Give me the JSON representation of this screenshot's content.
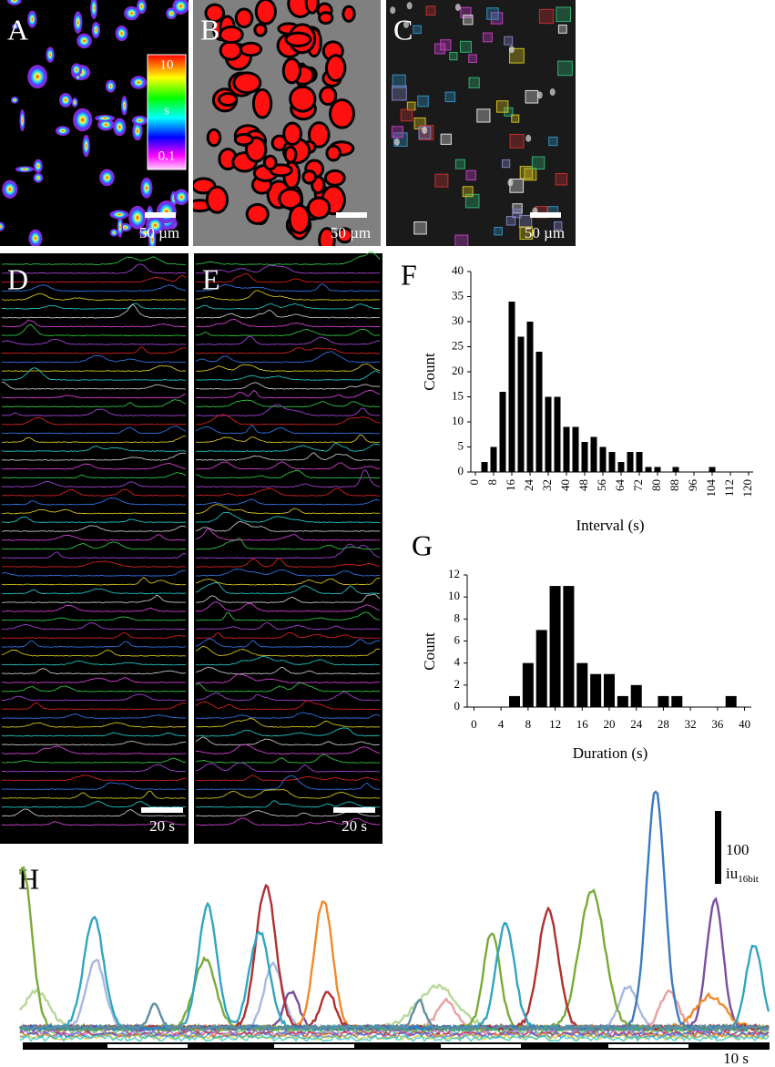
{
  "panels": {
    "A": {
      "label": "A",
      "scale": "50 µm",
      "colorbar": {
        "max": "10",
        "unit": "s",
        "min": "0.1"
      }
    },
    "B": {
      "label": "B",
      "scale": "50 µm"
    },
    "C": {
      "label": "C",
      "scale": "50 µm"
    },
    "D": {
      "label": "D",
      "scale": "20 s"
    },
    "E": {
      "label": "E",
      "scale": "20 s"
    },
    "H": {
      "label": "H",
      "scale_value": "100",
      "scale_unit": "iu",
      "scale_unit_sub": "16bit",
      "time_scale": "10 s"
    }
  },
  "chart_data": [
    {
      "type": "bar",
      "panel_label": "F",
      "x_label": "Interval (s)",
      "y_label": "Count",
      "color": "#000000",
      "x": [
        0,
        4,
        8,
        12,
        16,
        20,
        24,
        28,
        32,
        36,
        40,
        44,
        48,
        52,
        56,
        60,
        64,
        68,
        72,
        76,
        80,
        84,
        88,
        92,
        96,
        100,
        104,
        108,
        112,
        116,
        120
      ],
      "values": [
        0,
        2,
        5,
        16,
        34,
        27,
        30,
        24,
        15,
        15,
        9,
        9,
        6,
        7,
        5,
        4,
        2,
        4,
        4,
        1,
        1,
        0,
        1,
        0,
        0,
        0,
        1,
        0,
        0,
        0,
        0
      ],
      "xlim": [
        -2,
        122
      ],
      "ylim": [
        0,
        40
      ],
      "xticks": [
        0,
        8,
        16,
        24,
        32,
        40,
        48,
        56,
        64,
        72,
        80,
        88,
        96,
        104,
        112,
        120
      ],
      "yticks": [
        0,
        5,
        10,
        15,
        20,
        25,
        30,
        35,
        40
      ]
    },
    {
      "type": "bar",
      "panel_label": "G",
      "x_label": "Duration (s)",
      "y_label": "Count",
      "color": "#000000",
      "x": [
        0,
        2,
        4,
        6,
        8,
        10,
        12,
        14,
        16,
        18,
        20,
        22,
        24,
        26,
        28,
        30,
        32,
        34,
        36,
        38,
        40
      ],
      "values": [
        0,
        0,
        0,
        1,
        4,
        7,
        11,
        11,
        4,
        3,
        3,
        1,
        2,
        0,
        1,
        1,
        0,
        0,
        0,
        1,
        0
      ],
      "xlim": [
        -1,
        41
      ],
      "ylim": [
        0,
        12
      ],
      "xticks": [
        0,
        4,
        8,
        12,
        16,
        20,
        24,
        28,
        32,
        36,
        40
      ],
      "yticks": [
        0,
        2,
        4,
        6,
        8,
        10,
        12
      ]
    }
  ]
}
